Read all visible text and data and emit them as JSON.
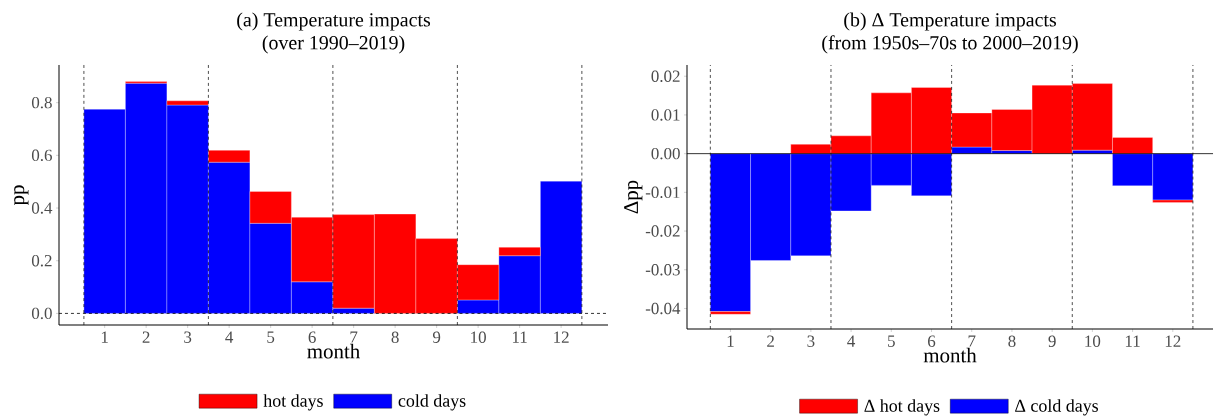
{
  "chart_data": [
    {
      "type": "bar",
      "title": "(a) Temperature impacts",
      "subtitle": "(over 1990–2019)",
      "xlabel": "month",
      "ylabel": "pp",
      "stacked": true,
      "legend": "bottom",
      "x": [
        1,
        2,
        3,
        4,
        5,
        6,
        7,
        8,
        9,
        10,
        11,
        12
      ],
      "series": [
        {
          "name": "cold days",
          "color": "#0000ff",
          "values": [
            0.775,
            0.874,
            0.791,
            0.574,
            0.342,
            0.12,
            0.02,
            null,
            null,
            0.051,
            0.219,
            0.502
          ]
        },
        {
          "name": "hot days",
          "color": "#ff0000",
          "values": [
            null,
            0.006,
            0.016,
            0.045,
            0.121,
            0.245,
            0.355,
            0.377,
            0.284,
            0.134,
            0.032,
            null
          ]
        }
      ],
      "xlim": [
        -0.1,
        13.13
      ],
      "ylim": [
        -0.044,
        0.943
      ],
      "xticks": [
        1,
        2,
        3,
        4,
        5,
        6,
        7,
        8,
        9,
        10,
        11,
        12
      ],
      "yticks": [
        {
          "value": 0,
          "label": "0.0"
        },
        {
          "value": 0.2,
          "label": "0.2"
        },
        {
          "value": 0.4,
          "label": "0.4"
        },
        {
          "value": 0.6,
          "label": "0.6"
        },
        {
          "value": 0.8,
          "label": "0.8"
        }
      ],
      "ref_lines": [
        {
          "axis": "x",
          "value": 0.5,
          "line_style": "dashed"
        },
        {
          "axis": "x",
          "value": 3.5,
          "line_style": "dashed"
        },
        {
          "axis": "x",
          "value": 6.5,
          "line_style": "dashed"
        },
        {
          "axis": "x",
          "value": 9.5,
          "line_style": "dashed"
        },
        {
          "axis": "x",
          "value": 12.5,
          "line_style": "dashed"
        },
        {
          "axis": "y",
          "value": 0,
          "line_style": "dashed"
        }
      ]
    },
    {
      "type": "bar",
      "title": "(b) Δ Temperature impacts",
      "subtitle": "(from 1950s–70s to 2000–2019)",
      "xlabel": "month",
      "ylabel": "Δpp",
      "stacked": true,
      "legend": "bottom",
      "x": [
        1,
        2,
        3,
        4,
        5,
        6,
        7,
        8,
        9,
        10,
        11,
        12
      ],
      "series": [
        {
          "name": "Δ cold days",
          "color": "#0000ff",
          "values": [
            -0.0408,
            -0.0276,
            -0.0264,
            -0.0148,
            -0.0082,
            -0.0109,
            0.0017,
            0.0008,
            0,
            0.0009,
            -0.0083,
            -0.012
          ]
        },
        {
          "name": "Δ hot days",
          "color": "#ff0000",
          "values": [
            -0.0007,
            0,
            0.0024,
            0.0046,
            0.0157,
            0.0171,
            0.0088,
            0.0106,
            0.0177,
            0.0172,
            0.0042,
            -0.0006
          ]
        }
      ],
      "xlim": [
        -0.08,
        13.0
      ],
      "ylim": [
        -0.0453,
        0.0229
      ],
      "xticks": [
        1,
        2,
        3,
        4,
        5,
        6,
        7,
        8,
        9,
        10,
        11,
        12
      ],
      "yticks": [
        {
          "value": -0.04,
          "label": "-0.04"
        },
        {
          "value": -0.03,
          "label": "-0.03"
        },
        {
          "value": -0.02,
          "label": "-0.02"
        },
        {
          "value": -0.01,
          "label": "-0.01"
        },
        {
          "value": 0,
          "label": "0.00"
        },
        {
          "value": 0.01,
          "label": "0.01"
        },
        {
          "value": 0.02,
          "label": "0.02"
        }
      ],
      "ref_lines": [
        {
          "axis": "x",
          "value": 0.5,
          "line_style": "dashed"
        },
        {
          "axis": "x",
          "value": 3.5,
          "line_style": "dashed"
        },
        {
          "axis": "x",
          "value": 6.5,
          "line_style": "dashed"
        },
        {
          "axis": "x",
          "value": 9.5,
          "line_style": "dashed"
        },
        {
          "axis": "x",
          "value": 12.5,
          "line_style": "dashed"
        },
        {
          "axis": "y",
          "value": 0,
          "line_style": "solid"
        }
      ]
    }
  ]
}
